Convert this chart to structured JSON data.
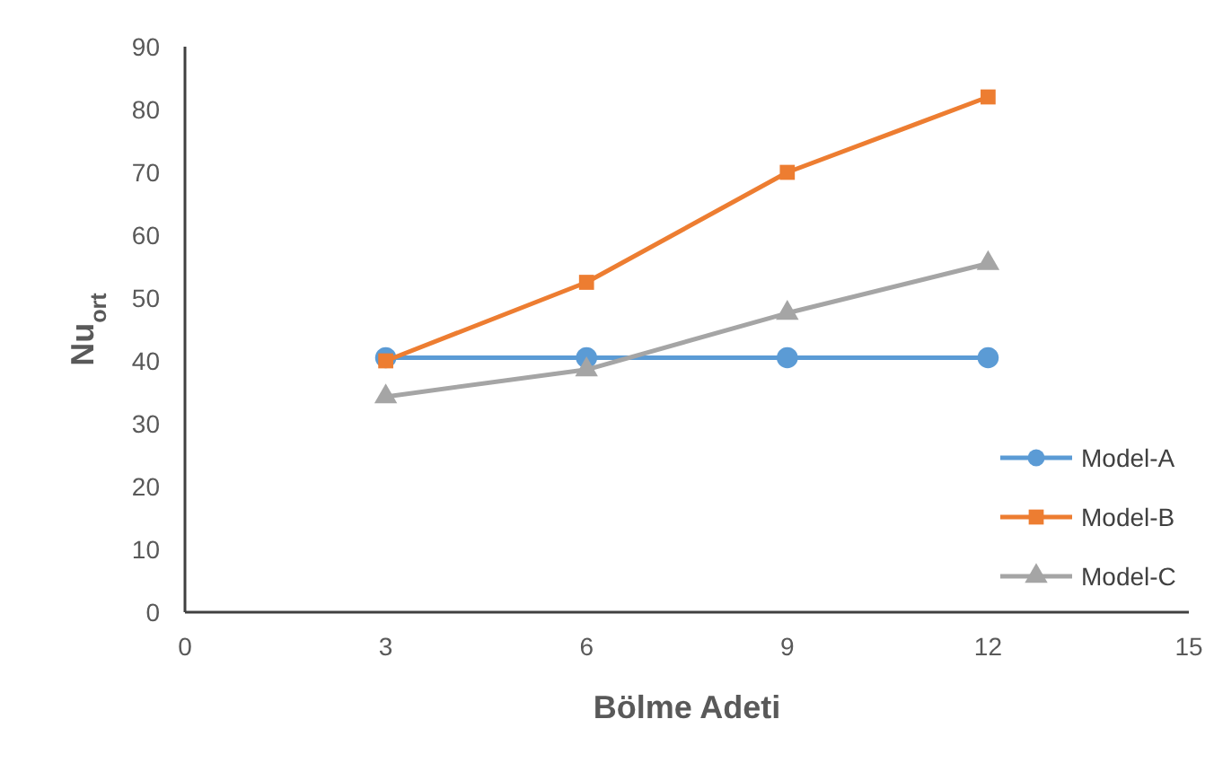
{
  "chart_data": {
    "type": "line",
    "xlabel": "Bölme Adeti",
    "ylabel": "Nu$_{ort}$",
    "xlim": [
      0,
      15
    ],
    "xticks": [
      0,
      3,
      6,
      9,
      12,
      15
    ],
    "ylim": [
      0,
      90
    ],
    "yticks": [
      0,
      10,
      20,
      30,
      40,
      50,
      60,
      70,
      80,
      90
    ],
    "grid": false,
    "legend": "right",
    "x": [
      3,
      6,
      9,
      12
    ],
    "series": [
      {
        "name": "Model-A",
        "color": "#5b9bd5",
        "marker": "circle",
        "values": [
          40.5,
          40.5,
          40.5,
          40.5
        ]
      },
      {
        "name": "Model-B",
        "color": "#ed7d31",
        "marker": "square",
        "values": [
          40,
          52.5,
          70,
          82
        ]
      },
      {
        "name": "Model-C",
        "color": "#a5a5a5",
        "marker": "triangle",
        "values": [
          34.3,
          38.6,
          47.6,
          55.5
        ]
      }
    ]
  }
}
